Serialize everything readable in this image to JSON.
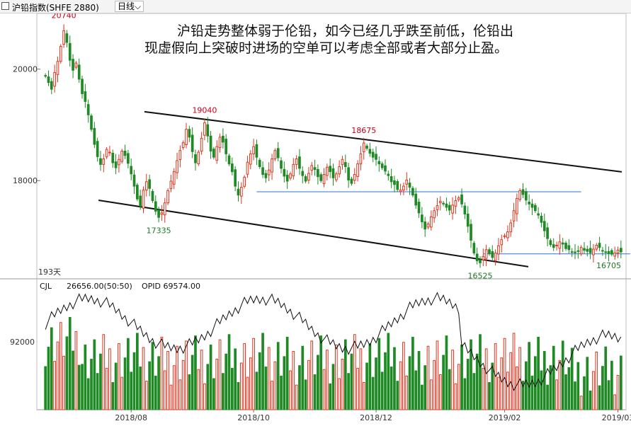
{
  "header": {
    "title": "沪铅指数(SHFE 2880)",
    "period": "日线",
    "dropdown_icon": "chevron-down-icon"
  },
  "annotation_text": [
    "沪铅走势整体弱于伦铅，如今已经几乎跌至前低，伦铅出",
    "现虚假向上突破时进场的空单可以考虑全部或者大部分止盈。"
  ],
  "days_label": "193天",
  "volume_info": {
    "indicator": "CJL",
    "value": "26656.00(50:50)",
    "opid": "OPID 69574.00"
  },
  "colors": {
    "up": "#e1341e",
    "down": "#1f8a25",
    "trendline": "#111111",
    "support": "#2a73d9",
    "opid_line": "#111111"
  },
  "chart_data": [
    {
      "type": "candlestick",
      "title": "沪铅指数(SHFE 2880)",
      "period": "日线",
      "yaxis_ticks": [
        20000,
        18000
      ],
      "ylim": [
        16250,
        21000
      ],
      "xaxis_ticks": [
        "2018/08",
        "2018/10",
        "2018/12",
        "2019/02",
        "2019/03"
      ],
      "n_bars": 193,
      "closes": [
        19880,
        19760,
        19640,
        19940,
        20140,
        20410,
        20690,
        20480,
        20160,
        19980,
        20110,
        19820,
        19560,
        19420,
        19180,
        18920,
        18650,
        18430,
        18290,
        18390,
        18560,
        18510,
        18320,
        18230,
        18380,
        18530,
        18450,
        18310,
        18120,
        17900,
        17670,
        17540,
        17830,
        17980,
        17860,
        17640,
        17450,
        17340,
        17420,
        17600,
        17820,
        17990,
        18160,
        18360,
        18540,
        18680,
        18920,
        18780,
        18520,
        18320,
        18510,
        18760,
        19040,
        18800,
        18530,
        18420,
        18610,
        18780,
        18690,
        18480,
        18300,
        18160,
        17900,
        17740,
        17880,
        18060,
        18330,
        18480,
        18610,
        18420,
        18250,
        18110,
        18050,
        18190,
        18390,
        18540,
        18410,
        18220,
        18080,
        17990,
        18120,
        18290,
        18390,
        18220,
        18090,
        17990,
        18130,
        18270,
        18200,
        18070,
        18000,
        18110,
        18240,
        18160,
        18050,
        18120,
        18250,
        18380,
        18250,
        18010,
        17950,
        18110,
        18300,
        18480,
        18675,
        18580,
        18490,
        18420,
        18380,
        18300,
        18230,
        18170,
        18090,
        17980,
        17930,
        17840,
        17830,
        17900,
        18010,
        17880,
        17740,
        17560,
        17420,
        17260,
        17130,
        17220,
        17350,
        17460,
        17550,
        17630,
        17580,
        17520,
        17470,
        17560,
        17640,
        17690,
        17580,
        17400,
        17180,
        16930,
        16700,
        16560,
        16525,
        16640,
        16760,
        16690,
        16620,
        16700,
        16830,
        16940,
        17010,
        17080,
        17240,
        17460,
        17680,
        17820,
        17750,
        17650,
        17580,
        17520,
        17460,
        17380,
        17250,
        17100,
        16960,
        16850,
        16800,
        16840,
        16900,
        16860,
        16780,
        16760,
        16720,
        16705,
        16740,
        16800,
        16750,
        16730,
        16705,
        16770,
        16840,
        16800,
        16740,
        16710,
        16690,
        16680,
        16700,
        16750,
        16720
      ],
      "key_levels": [
        {
          "label": "20740",
          "value": 20740,
          "type": "high"
        },
        {
          "label": "19040",
          "value": 19040,
          "type": "high"
        },
        {
          "label": "18675",
          "value": 18675,
          "type": "high"
        },
        {
          "label": "17335",
          "value": 17335,
          "type": "low"
        },
        {
          "label": "16525",
          "value": 16525,
          "type": "low"
        },
        {
          "label": "16705",
          "value": 16705,
          "type": "low"
        }
      ],
      "support_lines": [
        17800,
        16685
      ],
      "volume_ytick": 92000,
      "volume_ylim": [
        70000,
        112000
      ],
      "volume_last": 26656.0,
      "opid_last": 69574.0
    }
  ]
}
